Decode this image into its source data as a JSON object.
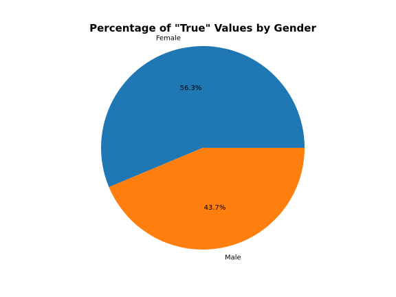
{
  "chart_data": {
    "type": "pie",
    "title": "Percentage of \"True\" Values by Gender",
    "categories": [
      "Female",
      "Male"
    ],
    "values": [
      56.3,
      43.7
    ],
    "percent_labels": [
      "56.3%",
      "43.7%"
    ],
    "colors": [
      "#1f77b4",
      "#ff7f0e"
    ],
    "start_angle_deg": 0,
    "direction": "counterclockwise",
    "legend": "none"
  }
}
